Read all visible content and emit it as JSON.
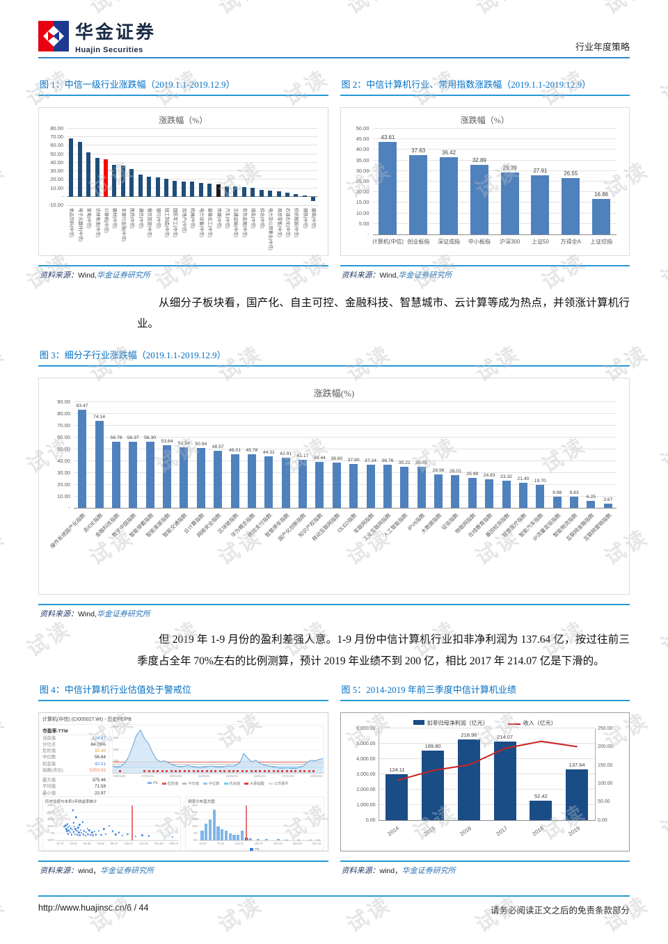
{
  "header": {
    "logo_cn": "华金证券",
    "logo_en": "Huajin Securities",
    "right_label": "行业年度策略"
  },
  "watermark": {
    "text": "试读"
  },
  "paragraphs": {
    "p1": "从细分子板块看，国产化、自主可控、金融科技、智慧城市、云计算等成为热点，并领涨计算机行业。",
    "p2": "但 2019 年 1-9 月份的盈利差强人意。1-9 月份中信计算机行业扣非净利润为 137.64 亿，按过往前三季度占全年 70%左右的比例测算，预计 2019 年业绩不到 200 亿，相比 2017 年 214.07 亿是下滑的。"
  },
  "figures": {
    "fig1": {
      "title": "图 1：中信一级行业涨跌幅（2019.1.1-2019.12.9）",
      "source": {
        "label": "资料来源：",
        "text": "Wind,",
        "org": "华金证券研究所"
      }
    },
    "fig2": {
      "title": "图 2：中信计算机行业、常用指数涨跌幅（2019.1.1-2019.12.9）",
      "source": {
        "label": "资料来源：",
        "text": "Wind,",
        "org": "华金证券研究所"
      }
    },
    "fig3": {
      "title": "图 3：细分子行业涨跌幅（2019.1.1-2019.12.9）",
      "source": {
        "label": "资料来源：",
        "text": "Wind,",
        "org": "华金证券研究所"
      }
    },
    "fig4": {
      "title": "图 4：中信计算机行业估值处于警戒位",
      "source": {
        "label": "资料来源：",
        "text": "wind，",
        "org": "华金证券研究所"
      }
    },
    "fig5": {
      "title": "图 5：2014-2019 年前三季度中信计算机业绩",
      "source": {
        "label": "资料来源：",
        "text": "wind，",
        "org": "华金证券研究所"
      }
    }
  },
  "footer": {
    "url": "http://www.huajinsc.cn/6 / 44",
    "disclaimer": "请务必阅读正文之后的免责条款部分"
  },
  "chart_data": [
    {
      "id": "fig1",
      "type": "bar",
      "title": "涨跌幅（%）",
      "categories": [
        "食品饮料(中信)",
        "电子元器件(中信)",
        "家电(中信)",
        "农林牧渔(中信)",
        "计算机(中信)",
        "建材(中信)",
        "非银行金融(中信)",
        "医药(中信)",
        "通信(中信)",
        "餐饮旅游(中信)",
        "银行(中信)",
        "轻工制造(中信)",
        "国防军工(中信)",
        "房地产(中信)",
        "机械(中信)",
        "电力设备(中信)",
        "基础化工(中信)",
        "传媒(中信)",
        "汽车(中信)",
        "交通运输(中信)",
        "有色金属(中信)",
        "煤炭(中信)",
        "综合(中信)",
        "电力及公用事业(中信)",
        "商贸零售(中信)",
        "石油石化(中信)",
        "纺织服装(中信)",
        "钢铁(中信)",
        "建筑(中信)"
      ],
      "values": [
        68.5,
        64.5,
        52,
        46,
        43.61,
        37.5,
        36.5,
        32.5,
        26,
        23.5,
        22.5,
        21,
        19,
        18,
        17.5,
        16,
        15,
        14.5,
        12.5,
        12,
        11,
        10.5,
        8,
        7,
        6,
        5,
        3,
        1.5,
        -5
      ],
      "bar_color": "#1F4E79",
      "highlight": {
        "4": "#FF0000",
        "17": "#1A1A1A"
      },
      "ylim": [
        -10,
        80
      ],
      "yticks": [
        {
          "v": 80,
          "l": "80.00"
        },
        {
          "v": 70,
          "l": "70.00"
        },
        {
          "v": 60,
          "l": "60.00"
        },
        {
          "v": 50,
          "l": "50.00"
        },
        {
          "v": 40,
          "l": "40.00"
        },
        {
          "v": 30,
          "l": "30.00"
        },
        {
          "v": 20,
          "l": "20.00"
        },
        {
          "v": 10,
          "l": "10.00"
        },
        {
          "v": 0,
          "l": "-"
        },
        {
          "v": -10,
          "l": "-10.00"
        }
      ],
      "note": "values estimated from bar heights except 计算机(中信)=43.61; 计算机 bar red, 传媒 bar black"
    },
    {
      "id": "fig2",
      "type": "bar",
      "title": "涨跌幅（%）",
      "categories": [
        "计算机(中信)",
        "创业板指",
        "深证成指",
        "中小板指",
        "沪深300",
        "上证50",
        "万得全A",
        "上证综指"
      ],
      "values": [
        43.61,
        37.63,
        36.42,
        32.89,
        29.39,
        27.91,
        26.55,
        16.86
      ],
      "bar_color": "#4F81BD",
      "ylim": [
        0,
        50
      ],
      "yticks": [
        {
          "v": 50,
          "l": "50.00"
        },
        {
          "v": 45,
          "l": "45.00"
        },
        {
          "v": 40,
          "l": "40.00"
        },
        {
          "v": 35,
          "l": "35.00"
        },
        {
          "v": 30,
          "l": "30.00"
        },
        {
          "v": 25,
          "l": "25.00"
        },
        {
          "v": 20,
          "l": "20.00"
        },
        {
          "v": 15,
          "l": "15.00"
        },
        {
          "v": 10,
          "l": "10.00"
        },
        {
          "v": 5,
          "l": "5.00"
        },
        {
          "v": 0,
          "l": "-"
        }
      ]
    },
    {
      "id": "fig3",
      "type": "bar",
      "title": "涨跌幅(%)",
      "categories": [
        "操作系统国产化指数",
        "去IOE指数",
        "金融科技指数",
        "数字中国指数",
        "智能穿戴指数",
        "智能家居指数",
        "智能交通指数",
        "云计算指数",
        "网络安全指数",
        "区块链指数",
        "华为概念指数",
        "移动支付指数",
        "智慧停车指数",
        "国产化创新指数",
        "知识产权指数",
        "移动互联网指数",
        "OLED指数",
        "车联网指数",
        "工业互联网指数",
        "人工智能指数",
        "IPV6指数",
        "大数据指数",
        "征信指数",
        "物联网指数",
        "在线教育指数",
        "基因检测指数",
        "智慧医疗指数",
        "智能汽车指数",
        "IP流量变现指数",
        "智能物流指数",
        "互联网金融指数",
        "互联网营销指数"
      ],
      "values": [
        83.47,
        74.14,
        56.78,
        56.37,
        56.3,
        53.64,
        51.94,
        50.94,
        48.57,
        46.01,
        45.78,
        44.31,
        42.91,
        41.17,
        39.44,
        38.8,
        37.6,
        37.24,
        36.76,
        35.21,
        35.05,
        28.96,
        28.01,
        25.99,
        24.83,
        23.32,
        21.4,
        19.7,
        9.98,
        9.83,
        6.25,
        3.67
      ],
      "bar_color": "#4F81BD",
      "ylim": [
        0,
        90
      ],
      "yticks": [
        {
          "v": 90,
          "l": "90.00"
        },
        {
          "v": 80,
          "l": "80.00"
        },
        {
          "v": 70,
          "l": "70.00"
        },
        {
          "v": 60,
          "l": "60.00"
        },
        {
          "v": 50,
          "l": "50.00"
        },
        {
          "v": 40,
          "l": "40.00"
        },
        {
          "v": 30,
          "l": "30.00"
        },
        {
          "v": 20,
          "l": "20.00"
        },
        {
          "v": 10,
          "l": "10.00"
        },
        {
          "v": 0,
          "l": "-"
        }
      ]
    },
    {
      "id": "fig4_pe",
      "type": "area",
      "title": "计算机(中信) (CI005027.WI) - 历史PE/PB",
      "panel_label": "市盈率-TTM",
      "stats": [
        {
          "label": "当前值",
          "value": "124.47",
          "color": "#3B82D9"
        },
        {
          "label": "分位点",
          "value": "84.79%",
          "color": "#333333"
        },
        {
          "label": "危险值",
          "value": "91.40",
          "color": "#E09A3C"
        },
        {
          "label": "中位数",
          "value": "56.84",
          "color": "#333333"
        },
        {
          "label": "机会值",
          "value": "42.01",
          "color": "#3B82D9"
        },
        {
          "label": "指数(点位)",
          "value": "5253.03",
          "color": "#F07B3C"
        },
        {
          "label": "最大值",
          "value": "375.46",
          "color": "#333333"
        },
        {
          "label": "平均值",
          "value": "71.58",
          "color": "#333333"
        },
        {
          "label": "最小值",
          "value": "22.97",
          "color": "#333333"
        }
      ],
      "ylim": [
        0,
        400
      ],
      "yticks": [
        {
          "v": 400,
          "l": "400"
        },
        {
          "v": 300,
          "l": "300"
        },
        {
          "v": 200,
          "l": "200"
        },
        {
          "v": 100,
          "l": "100"
        }
      ],
      "ref_lines": [
        {
          "label": "危险值",
          "v": 91.4,
          "color": "#E05A5A"
        },
        {
          "label": "平均值",
          "v": 71.58,
          "color": "#B8B8B8"
        },
        {
          "label": "中位数",
          "v": 56.84,
          "color": "#9AC4EC"
        },
        {
          "label": "机会值",
          "v": 42.01,
          "color": "#6ECFE8"
        }
      ],
      "series_estimate": [
        62,
        48,
        55,
        85,
        140,
        230,
        330,
        372,
        300,
        255,
        180,
        120,
        95,
        105,
        88,
        72,
        60,
        52,
        58,
        64,
        55,
        48,
        45,
        50,
        56,
        60,
        52,
        48,
        55,
        62,
        58,
        65,
        90,
        170,
        128,
        96,
        110,
        85,
        70,
        62,
        55,
        48,
        42,
        42,
        45,
        40,
        38,
        48,
        60,
        95,
        110,
        105,
        118,
        124
      ],
      "xticks": [
        "05/01/01",
        "07/01/01",
        "09/01/01",
        "11/01/01",
        "13/01/01",
        "15/01/01",
        "17/01/01",
        "19/01/01"
      ],
      "legend": [
        {
          "label": "PE",
          "color": "#7EB6E8"
        },
        {
          "label": "危险值",
          "color": "#E05A5A"
        },
        {
          "label": "平均值",
          "color": "#B8B8B8"
        },
        {
          "label": "中位数",
          "color": "#9AC4EC"
        },
        {
          "label": "机会值",
          "color": "#6ECFE8"
        },
        {
          "label": "大事提醒",
          "color": "#E04040"
        },
        {
          "label": "公司事件",
          "color": "#C8DFF5"
        }
      ]
    },
    {
      "id": "fig4_scatter",
      "type": "scatter",
      "title": "历史估值与未来1年收益率统计",
      "xlabel": "市盈率-TTM",
      "yticks": [
        "400%",
        "300%",
        "200%",
        "100%",
        "0%",
        "-100%"
      ],
      "xticks": [
        "15.70",
        "32.64",
        "54.58",
        "76.52",
        "98.47",
        "120.41",
        "142.35",
        "164.29",
        "186.24"
      ],
      "xlim": [
        10,
        195
      ],
      "ylim": [
        -100,
        400
      ],
      "vline": 124.47,
      "points": [
        [
          22,
          95
        ],
        [
          24,
          110
        ],
        [
          25,
          60
        ],
        [
          26,
          30
        ],
        [
          27,
          130
        ],
        [
          28,
          85
        ],
        [
          28,
          -10
        ],
        [
          29,
          40
        ],
        [
          30,
          105
        ],
        [
          31,
          15
        ],
        [
          32,
          70
        ],
        [
          33,
          -20
        ],
        [
          34,
          55
        ],
        [
          35,
          330
        ],
        [
          36,
          150
        ],
        [
          36,
          20
        ],
        [
          37,
          95
        ],
        [
          38,
          -15
        ],
        [
          39,
          60
        ],
        [
          40,
          230
        ],
        [
          41,
          35
        ],
        [
          42,
          -25
        ],
        [
          43,
          80
        ],
        [
          44,
          10
        ],
        [
          45,
          120
        ],
        [
          46,
          -30
        ],
        [
          47,
          45
        ],
        [
          48,
          5
        ],
        [
          50,
          160
        ],
        [
          51,
          -20
        ],
        [
          52,
          30
        ],
        [
          54,
          -35
        ],
        [
          55,
          15
        ],
        [
          57,
          65
        ],
        [
          58,
          -15
        ],
        [
          60,
          40
        ],
        [
          62,
          -25
        ],
        [
          64,
          10
        ],
        [
          66,
          -30
        ],
        [
          68,
          25
        ],
        [
          70,
          -20
        ],
        [
          74,
          35
        ],
        [
          78,
          -25
        ],
        [
          82,
          60
        ],
        [
          85,
          -15
        ],
        [
          90,
          105
        ],
        [
          95,
          30
        ],
        [
          100,
          -20
        ],
        [
          105,
          10
        ],
        [
          110,
          -35
        ],
        [
          118,
          -15
        ],
        [
          125,
          -30
        ],
        [
          130,
          -45
        ],
        [
          140,
          -30
        ],
        [
          150,
          -40
        ],
        [
          186,
          -55
        ]
      ]
    },
    {
      "id": "fig4_hist",
      "type": "histogram",
      "title": "频率分布直方图",
      "yticks": [
        "25%",
        "20%",
        "15%",
        "10%",
        "5%",
        "0%"
      ],
      "values": [
        7,
        12,
        15,
        22,
        10,
        8,
        7,
        5,
        4,
        4,
        7,
        2,
        1.5,
        0,
        1,
        0,
        0.8,
        0,
        0,
        1,
        0,
        0.6,
        0,
        0,
        0.5,
        0,
        0,
        0.4,
        0,
        0.6
      ],
      "current_index": 11,
      "legend_label": "PE",
      "xticks": [
        "22.97",
        "75.04",
        "128.12",
        "180.70",
        "242.03",
        "294.60",
        "347.18"
      ]
    },
    {
      "id": "fig5",
      "type": "bar+line",
      "categories": [
        "2014",
        "2015",
        "2016",
        "2017",
        "2018",
        "2019"
      ],
      "series": [
        {
          "name": "扣非归母净利润（亿元）",
          "type": "bar",
          "axis": "right",
          "values": [
            124.11,
            189.8,
            218.96,
            214.07,
            52.42,
            137.64
          ],
          "color": "#1A4C86"
        },
        {
          "name": "收入（亿元）",
          "type": "line",
          "axis": "left",
          "values_estimate": [
            2600,
            3250,
            3620,
            4700,
            5150,
            4800
          ],
          "color": "#CC2222"
        }
      ],
      "left_ylim": [
        0,
        6000
      ],
      "left_yticks": [
        "6,000.00",
        "5,000.00",
        "4,000.00",
        "3,000.00",
        "2,000.00",
        "1,000.00",
        "0.00"
      ],
      "right_ylim": [
        0,
        250
      ],
      "right_yticks": [
        "250.00",
        "200.00",
        "150.00",
        "100.00",
        "50.00",
        "0.00"
      ]
    }
  ]
}
